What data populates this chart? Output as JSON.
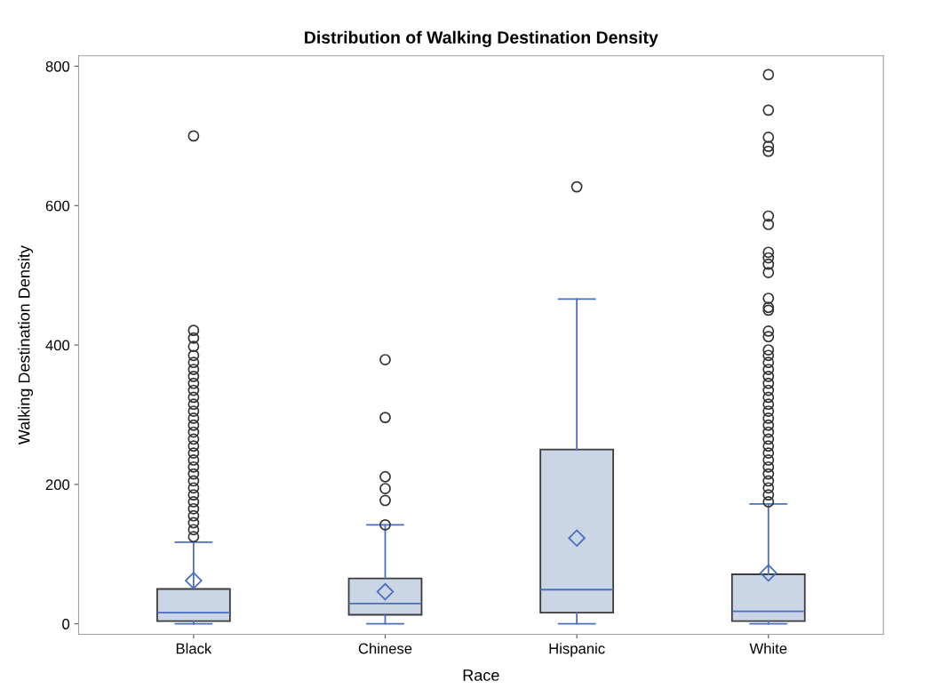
{
  "chart_data": {
    "type": "box",
    "title": "Distribution of Walking Destination Density",
    "xlabel": "Race",
    "ylabel": "Walking Destination Density",
    "categories": [
      "Black",
      "Chinese",
      "Hispanic",
      "White"
    ],
    "ylim": [
      -15,
      815
    ],
    "yticks": [
      0,
      200,
      400,
      600,
      800
    ],
    "grid": false,
    "series": [
      {
        "color": "#cad5e5",
        "boxes": [
          {
            "low": 0,
            "q1": 4,
            "median": 16,
            "q3": 50,
            "high": 117,
            "mean": 62,
            "outliers": [
              700,
              421,
              410,
              398,
              385,
              375,
              365,
              355,
              345,
              335,
              325,
              315,
              305,
              295,
              285,
              275,
              265,
              255,
              245,
              235,
              225,
              215,
              205,
              195,
              185,
              175,
              165,
              155,
              145,
              135,
              125
            ]
          },
          {
            "low": 0,
            "q1": 13,
            "median": 29,
            "q3": 65,
            "high": 142,
            "mean": 46,
            "outliers": [
              379,
              296,
              211,
              194,
              177,
              142
            ]
          },
          {
            "low": 0,
            "q1": 16,
            "median": 49,
            "q3": 250,
            "high": 466,
            "mean": 123,
            "outliers": [
              627
            ]
          },
          {
            "low": 0,
            "q1": 4,
            "median": 18,
            "q3": 71,
            "high": 172,
            "mean": 73,
            "outliers": [
              788,
              737,
              698,
              685,
              678,
              585,
              573,
              533,
              525,
              516,
              504,
              467,
              454,
              450,
              420,
              412,
              393,
              385,
              375,
              365,
              355,
              345,
              335,
              325,
              315,
              305,
              295,
              285,
              275,
              265,
              255,
              245,
              235,
              225,
              215,
              205,
              195,
              185,
              175
            ]
          }
        ]
      }
    ]
  }
}
